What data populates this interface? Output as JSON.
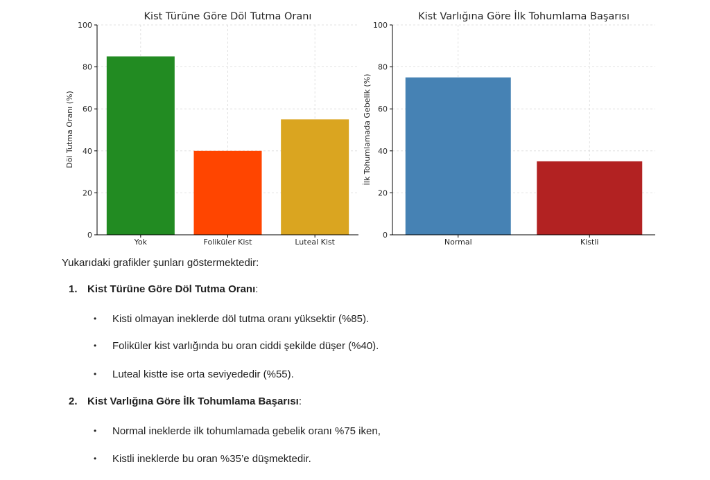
{
  "chart_data": [
    {
      "type": "bar",
      "title": "Kist Türüne Göre Döl Tutma Oranı",
      "xlabel": "",
      "ylabel": "Döl Tutma Oranı (%)",
      "categories": [
        "Yok",
        "Foliküler Kist",
        "Luteal Kist"
      ],
      "values": [
        85,
        40,
        55
      ],
      "colors": [
        "#228B22",
        "#FF4500",
        "#DAA520"
      ],
      "ylim": [
        0,
        100
      ],
      "yticks": [
        0,
        20,
        40,
        60,
        80,
        100
      ],
      "grid": true
    },
    {
      "type": "bar",
      "title": "Kist Varlığına Göre İlk Tohumlama Başarısı",
      "xlabel": "",
      "ylabel": "İlk Tohumlamada Gebelik (%)",
      "categories": [
        "Normal",
        "Kistli"
      ],
      "values": [
        75,
        35
      ],
      "colors": [
        "#4682B4",
        "#B22222"
      ],
      "ylim": [
        0,
        100
      ],
      "yticks": [
        0,
        20,
        40,
        60,
        80,
        100
      ],
      "grid": true
    }
  ],
  "text": {
    "intro": "Yukarıdaki grafikler şunları göstermektedir:",
    "bullet_glyph": "•",
    "sections": [
      {
        "number": "1.",
        "title": "Kist Türüne Göre Döl Tutma Oranı",
        "colon": ":",
        "bullets": [
          "Kisti olmayan ineklerde döl tutma oranı yüksektir (%85).",
          "Foliküler kist varlığında bu oran ciddi şekilde düşer (%40).",
          "Luteal kistte ise orta seviyededir (%55)."
        ]
      },
      {
        "number": "2.",
        "title": "Kist Varlığına Göre İlk Tohumlama Başarısı",
        "colon": ":",
        "bullets": [
          "Normal ineklerde ilk tohumlamada gebelik oranı %75 iken,",
          "Kistli ineklerde bu oran %35’e düşmektedir."
        ]
      }
    ]
  }
}
